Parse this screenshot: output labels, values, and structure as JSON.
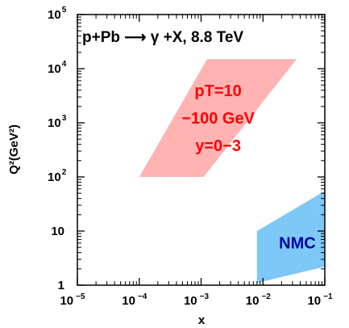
{
  "chart_data": {
    "type": "area",
    "title": "p+Pb ⟶ γ +X, 8.8 TeV",
    "xlabel": "x",
    "ylabel": "Q²(GeV²)",
    "x_scale": "log",
    "y_scale": "log",
    "xlim": [
      1e-05,
      0.1
    ],
    "ylim": [
      1,
      100000
    ],
    "grid": false,
    "x_ticks": [
      {
        "base": "10",
        "exp": "−5",
        "value": 1e-05
      },
      {
        "base": "10",
        "exp": "−4",
        "value": 0.0001
      },
      {
        "base": "10",
        "exp": "−3",
        "value": 0.001
      },
      {
        "base": "10",
        "exp": "−2",
        "value": 0.01
      },
      {
        "base": "10",
        "exp": "−1",
        "value": 0.1
      }
    ],
    "y_ticks": [
      {
        "text": "1",
        "value": 1
      },
      {
        "text": "10",
        "value": 10
      },
      {
        "base": "10",
        "exp": "2",
        "value": 100
      },
      {
        "base": "10",
        "exp": "3",
        "value": 1000
      },
      {
        "base": "10",
        "exp": "4",
        "value": 10000
      },
      {
        "base": "10",
        "exp": "5",
        "value": 100000
      }
    ],
    "regions": [
      {
        "label_lines": [
          "pT=10",
          "−100 GeV",
          "y=0−3"
        ],
        "color": "#ffb3b3",
        "label_color": "#ff0000",
        "polygon": [
          [
            0.0001,
            100
          ],
          [
            0.0011,
            100
          ],
          [
            0.035,
            15000
          ],
          [
            0.00125,
            15000
          ]
        ]
      },
      {
        "label_lines": [
          "NMC"
        ],
        "color": "#7ec8f7",
        "label_color": "#0000aa",
        "polygon": [
          [
            0.008,
            1.1
          ],
          [
            0.1,
            2.2
          ],
          [
            0.1,
            55
          ],
          [
            0.008,
            10
          ]
        ]
      }
    ],
    "colors": {
      "frame": "#000000",
      "pt_region": "#ffb3b3",
      "pt_text": "#ff0000",
      "nmc_region": "#7ec8f7",
      "nmc_text": "#0000aa"
    }
  }
}
